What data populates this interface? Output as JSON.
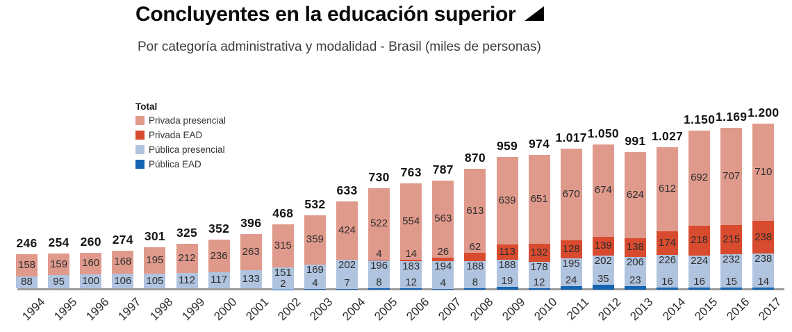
{
  "header": {
    "title": "Concluyentes en la educación superior",
    "subtitle": "Por categoría administrativa y modalidad - Brasil (miles de personas)"
  },
  "legend": {
    "title": "Total",
    "items": [
      "Privada presencial",
      "Privada EAD",
      "Pública presencial",
      "Pública EAD"
    ]
  },
  "colors": {
    "privada_presencial": "#e09a8c",
    "privada_ead": "#d94b2e",
    "publica_presencial": "#b0c4e0",
    "publica_ead": "#1465b1",
    "axis_line": "#9b9b9b",
    "value_text": "#2d2d2d",
    "title_text": "#0a0a0a"
  },
  "chart_data": {
    "type": "bar",
    "stacked": true,
    "title": "Concluyentes en la educación superior",
    "subtitle": "Por categoría administrativa y modalidad - Brasil (miles de personas)",
    "unit": "miles de personas",
    "grid": false,
    "legend_title": "Total",
    "legend_position": "top-left",
    "ylim": [
      0,
      1200
    ],
    "xlabel": "",
    "ylabel": "",
    "categories": [
      "1994",
      "1995",
      "1996",
      "1997",
      "1998",
      "1999",
      "2000",
      "2001",
      "2002",
      "2003",
      "2004",
      "2005",
      "2006",
      "2007",
      "2008",
      "2009",
      "2010",
      "2011",
      "2012",
      "2013",
      "2014",
      "2015",
      "2016",
      "2017"
    ],
    "series": [
      {
        "name": "Privada presencial",
        "color": "#e09a8c",
        "values": [
          158,
          159,
          160,
          168,
          195,
          212,
          236,
          263,
          315,
          359,
          424,
          522,
          554,
          563,
          613,
          639,
          651,
          670,
          674,
          624,
          612,
          692,
          707,
          710
        ]
      },
      {
        "name": "Privada EAD",
        "color": "#d94b2e",
        "values": [
          null,
          null,
          null,
          null,
          null,
          null,
          null,
          null,
          null,
          null,
          null,
          4,
          14,
          26,
          62,
          113,
          132,
          128,
          139,
          138,
          174,
          218,
          215,
          238
        ]
      },
      {
        "name": "Pública presencial",
        "color": "#b0c4e0",
        "values": [
          88,
          95,
          100,
          106,
          105,
          112,
          117,
          133,
          151,
          169,
          202,
          196,
          183,
          194,
          188,
          188,
          178,
          195,
          202,
          206,
          226,
          224,
          232,
          238
        ]
      },
      {
        "name": "Pública EAD",
        "color": "#1465b1",
        "values": [
          null,
          null,
          null,
          null,
          null,
          null,
          null,
          null,
          2,
          4,
          7,
          8,
          12,
          4,
          8,
          19,
          12,
          24,
          35,
          23,
          16,
          16,
          15,
          14
        ]
      }
    ],
    "totals": [
      "246",
      "254",
      "260",
      "274",
      "301",
      "325",
      "352",
      "396",
      "468",
      "532",
      "633",
      "730",
      "763",
      "787",
      "870",
      "959",
      "974",
      "1.017",
      "1.050",
      "991",
      "1.027",
      "1.150",
      "1.169",
      "1.200"
    ]
  }
}
